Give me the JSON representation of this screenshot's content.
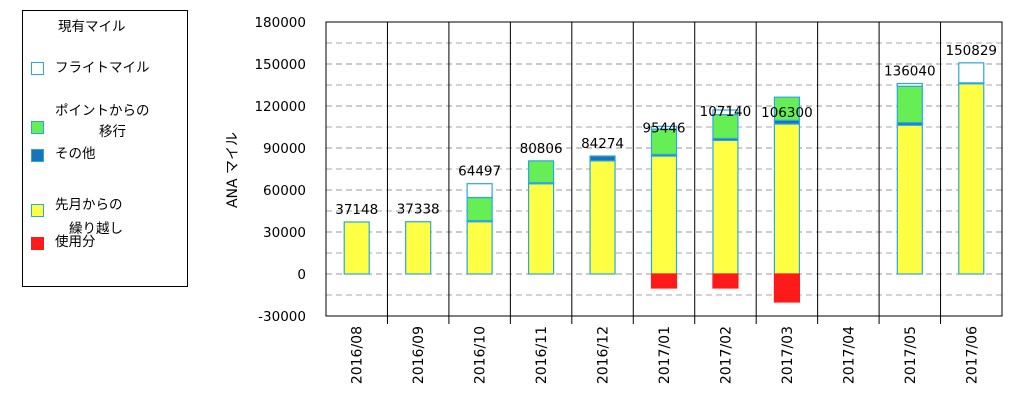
{
  "legend": {
    "title": "現有マイル",
    "items": [
      {
        "key": "flight",
        "label_lines": [
          "フライトマイル"
        ],
        "color": "#ffffff",
        "border": "#2aa8e0"
      },
      {
        "key": "point",
        "label_lines": [
          "ポイントからの",
          "移行"
        ],
        "color": "#66ee55",
        "border": "#2aa8e0"
      },
      {
        "key": "other",
        "label_lines": [
          "その他"
        ],
        "color": "#1a73b8",
        "border": "#2aa8e0"
      },
      {
        "key": "carry",
        "label_lines": [
          "先月からの",
          "繰り越し"
        ],
        "color": "#ffff44",
        "border": "#2aa8e0"
      },
      {
        "key": "used",
        "label_lines": [
          "使用分"
        ],
        "color": "#ff1a1a",
        "border": "#ff1a1a"
      }
    ]
  },
  "chart_data": {
    "type": "bar",
    "stacked": true,
    "ylabel": "ANA マイル",
    "ylim": [
      -30000,
      180000
    ],
    "yticks": [
      -30000,
      0,
      30000,
      60000,
      90000,
      120000,
      150000,
      180000
    ],
    "ytick_labels": [
      "-30000",
      "0",
      "30000",
      "60000",
      "90000",
      "120000",
      "150000",
      "180000"
    ],
    "grid": "horizontal-dashed",
    "categories": [
      "2016/08",
      "2016/09",
      "2016/10",
      "2016/11",
      "2016/12",
      "2017/01",
      "2017/02",
      "2017/03",
      "2017/04",
      "2017/05",
      "2017/06"
    ],
    "series": [
      {
        "key": "carry",
        "values": [
          37148,
          37338,
          37338,
          64497,
          80806,
          84274,
          95446,
          107140,
          0,
          106300,
          136040
        ]
      },
      {
        "key": "other",
        "values": [
          0,
          0,
          800,
          700,
          3468,
          1200,
          1400,
          2600,
          0,
          1800,
          500
        ]
      },
      {
        "key": "point",
        "values": [
          0,
          0,
          16500,
          15609,
          0,
          18000,
          17000,
          16560,
          0,
          26000,
          0
        ]
      },
      {
        "key": "flight",
        "values": [
          0,
          0,
          9859,
          0,
          0,
          1972,
          3294,
          0,
          0,
          1940,
          14289
        ]
      },
      {
        "key": "used",
        "values": [
          0,
          0,
          0,
          0,
          0,
          -10000,
          -10000,
          -20000,
          0,
          0,
          0
        ]
      }
    ],
    "totals": [
      37148,
      37338,
      64497,
      80806,
      84274,
      95446,
      107140,
      106300,
      null,
      136040,
      150829
    ],
    "total_labels": [
      "37148",
      "37338",
      "64497",
      "80806",
      "84274",
      "95446",
      "107140",
      "106300",
      "",
      "136040",
      "150829"
    ]
  }
}
